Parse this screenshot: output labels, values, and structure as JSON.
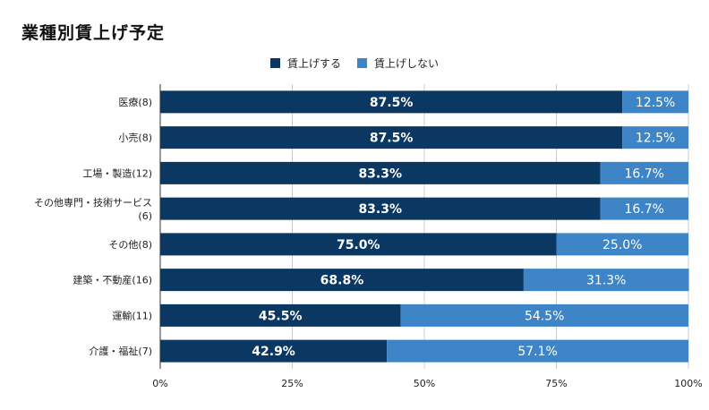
{
  "chart_data": {
    "type": "bar",
    "orientation": "horizontal",
    "stacked": true,
    "title": "業種別賃上げ予定",
    "categories": [
      "医療(8)",
      "小売(8)",
      "工場・製造(12)",
      "その他専門・技術サービス(6)",
      "その他(8)",
      "建築・不動産(16)",
      "運輸(11)",
      "介護・福祉(7)"
    ],
    "series": [
      {
        "name": "賃上げする",
        "color": "#0b3763",
        "values": [
          87.5,
          87.5,
          83.3,
          83.3,
          75.0,
          68.8,
          45.5,
          42.9
        ]
      },
      {
        "name": "賃上げしない",
        "color": "#3d85c6",
        "values": [
          12.5,
          12.5,
          16.7,
          16.7,
          25.0,
          31.3,
          54.5,
          57.1
        ]
      }
    ],
    "xlim": [
      0,
      100
    ],
    "xticks": [
      "0%",
      "25%",
      "50%",
      "75%",
      "100%"
    ],
    "grid": true,
    "legend_position": "top-center"
  }
}
